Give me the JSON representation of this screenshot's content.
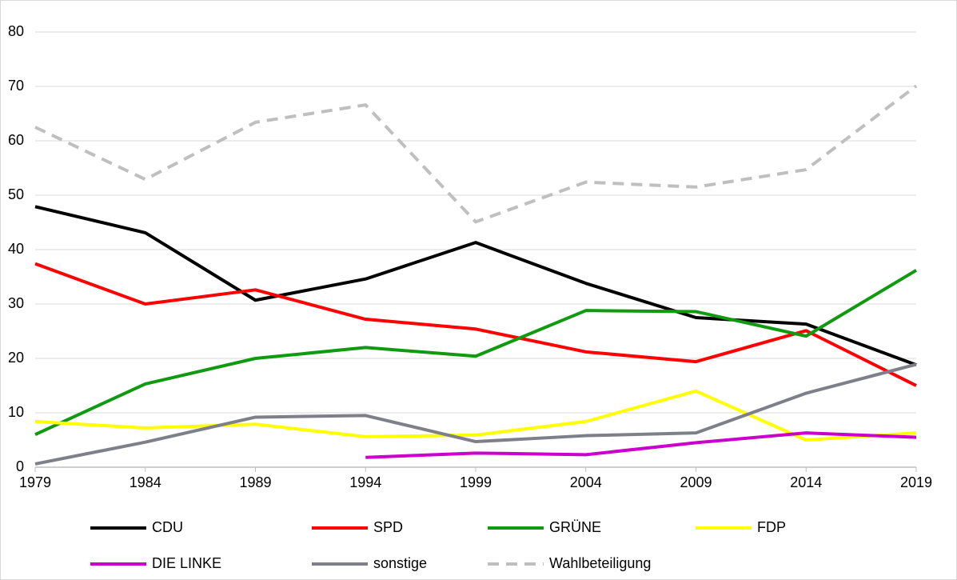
{
  "chart_data": {
    "type": "line",
    "x": [
      1979,
      1984,
      1989,
      1994,
      1999,
      2004,
      2009,
      2014,
      2019
    ],
    "xlim": [
      1979,
      2019
    ],
    "xticks": [
      1979,
      1984,
      1989,
      1994,
      1999,
      2004,
      2009,
      2014,
      2019
    ],
    "ylim": [
      0,
      80
    ],
    "yticks": [
      0,
      10,
      20,
      30,
      40,
      50,
      60,
      70,
      80
    ],
    "grid": true,
    "legend": "bottom",
    "series": [
      {
        "name": "CDU",
        "color": "#000000",
        "values": [
          47.9,
          43.1,
          30.7,
          34.6,
          41.3,
          33.8,
          27.5,
          26.3,
          18.8
        ]
      },
      {
        "name": "SPD",
        "color": "#ff0000",
        "values": [
          37.4,
          30.0,
          32.6,
          27.2,
          25.4,
          21.2,
          19.4,
          25.1,
          15.0
        ]
      },
      {
        "name": "GRÜNE",
        "color": "#109a10",
        "values": [
          6.0,
          15.3,
          20.0,
          22.0,
          20.4,
          28.8,
          28.6,
          24.1,
          36.2
        ]
      },
      {
        "name": "FDP",
        "color": "#ffff00",
        "values": [
          8.4,
          7.2,
          7.9,
          5.6,
          5.9,
          8.4,
          14.0,
          5.0,
          6.3
        ]
      },
      {
        "name": "DIE LINKE",
        "color": "#cc00cc",
        "values": [
          null,
          null,
          null,
          1.8,
          2.6,
          2.3,
          4.5,
          6.3,
          5.5
        ]
      },
      {
        "name": "sonstige",
        "color": "#7f7f8a",
        "values": [
          0.6,
          4.6,
          9.2,
          9.5,
          4.7,
          5.8,
          6.3,
          13.6,
          18.9
        ]
      },
      {
        "name": "Wahlbeteiligung",
        "color": "#bfbfbf",
        "dashed": true,
        "values": [
          62.5,
          52.9,
          63.4,
          66.6,
          45.1,
          52.4,
          51.5,
          54.7,
          70.1
        ]
      }
    ]
  }
}
